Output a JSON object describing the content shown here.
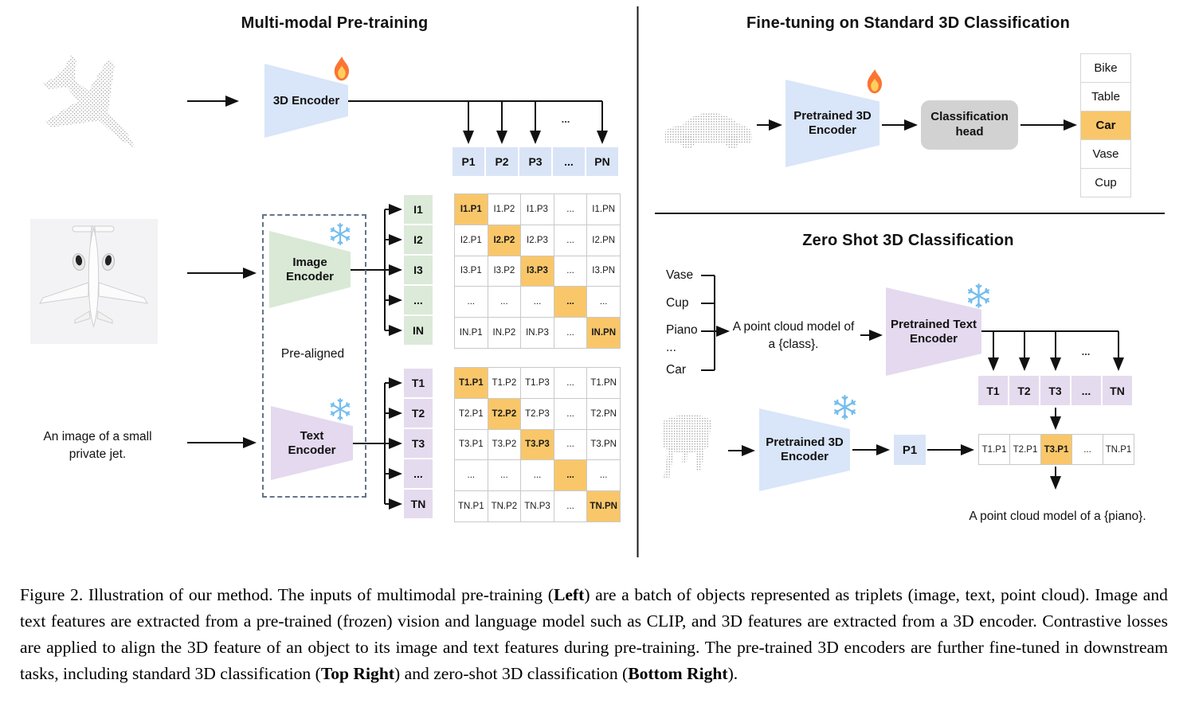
{
  "left_panel": {
    "title": "Multi-modal Pre-training",
    "encoder_3d_label": "3D Encoder",
    "image_encoder_label": "Image\nEncoder",
    "text_encoder_label": "Text\nEncoder",
    "pre_aligned_label": "Pre-aligned",
    "image_caption": "An image of a small\nprivate jet.",
    "dots_label": "...",
    "p_header": [
      "P1",
      "P2",
      "P3",
      "...",
      "PN"
    ],
    "i_labels": [
      "I1",
      "I2",
      "I3",
      "...",
      "IN"
    ],
    "t_labels": [
      "T1",
      "T2",
      "T3",
      "...",
      "TN"
    ],
    "i_matrix": [
      [
        "I1.P1",
        "I1.P2",
        "I1.P3",
        "...",
        "I1.PN"
      ],
      [
        "I2.P1",
        "I2.P2",
        "I2.P3",
        "...",
        "I2.PN"
      ],
      [
        "I3.P1",
        "I3.P2",
        "I3.P3",
        "...",
        "I3.PN"
      ],
      [
        "...",
        "...",
        "...",
        "...",
        "..."
      ],
      [
        "IN.P1",
        "IN.P2",
        "IN.P3",
        "...",
        "IN.PN"
      ]
    ],
    "t_matrix": [
      [
        "T1.P1",
        "T1.P2",
        "T1.P3",
        "...",
        "T1.PN"
      ],
      [
        "T2.P1",
        "T2.P2",
        "T2.P3",
        "...",
        "T2.PN"
      ],
      [
        "T3.P1",
        "T3.P2",
        "T3.P3",
        "...",
        "T3.PN"
      ],
      [
        "...",
        "...",
        "...",
        "...",
        "..."
      ],
      [
        "TN.P1",
        "TN.P2",
        "TN.P3",
        "...",
        "TN.PN"
      ]
    ]
  },
  "top_right": {
    "title": "Fine-tuning on Standard 3D Classification",
    "encoder_label": "Pretrained 3D\nEncoder",
    "head_label": "Classification\nhead",
    "classes": [
      "Bike",
      "Table",
      "Car",
      "Vase",
      "Cup"
    ],
    "highlighted_class": "Car"
  },
  "bottom_right": {
    "title": "Zero Shot 3D Classification",
    "class_list": [
      "Vase",
      "Cup",
      "Piano",
      "...",
      "Car"
    ],
    "prompt": "A point cloud model of\na {class}.",
    "text_encoder_label": "Pretrained Text\nEncoder",
    "encoder_label": "Pretrained 3D\nEncoder",
    "p1_label": "P1",
    "t_header": [
      "T1",
      "T2",
      "T3",
      "...",
      "TN"
    ],
    "dots_label": "...",
    "tp_row": [
      "T1.P1",
      "T2.P1",
      "T3.P1",
      "...",
      "TN.P1"
    ],
    "tp_highlight_index": 2,
    "result_text": "A point cloud model of a {piano}."
  },
  "caption": {
    "segments": [
      {
        "text": "Figure 2. Illustration of our method. The inputs of multimodal pre-training (",
        "bold": false
      },
      {
        "text": "Left",
        "bold": true
      },
      {
        "text": ") are a batch of objects represented as triplets (image, text, point cloud). Image and text features are extracted from a pre-trained (frozen) vision and language model such as CLIP, and 3D features are extracted from a 3D encoder. Contrastive losses are applied to align the 3D feature of an object to its image and text features during pre-training. The pre-trained 3D encoders are further fine-tuned in downstream tasks, including standard 3D classification (",
        "bold": false
      },
      {
        "text": "Top Right",
        "bold": true
      },
      {
        "text": ") and zero-shot 3D classification (",
        "bold": false
      },
      {
        "text": "Bottom Right",
        "bold": true
      },
      {
        "text": ").",
        "bold": false
      }
    ]
  },
  "icons": {
    "fire": "fire-icon (trainable)",
    "snowflake": "snowflake-icon (frozen)"
  },
  "colors": {
    "feature_blue": "#d9e4f7",
    "feature_green": "#dcead9",
    "feature_purple": "#e5dbee",
    "highlight_orange": "#f9c769",
    "classification_head_gray": "#d2d2d2"
  }
}
